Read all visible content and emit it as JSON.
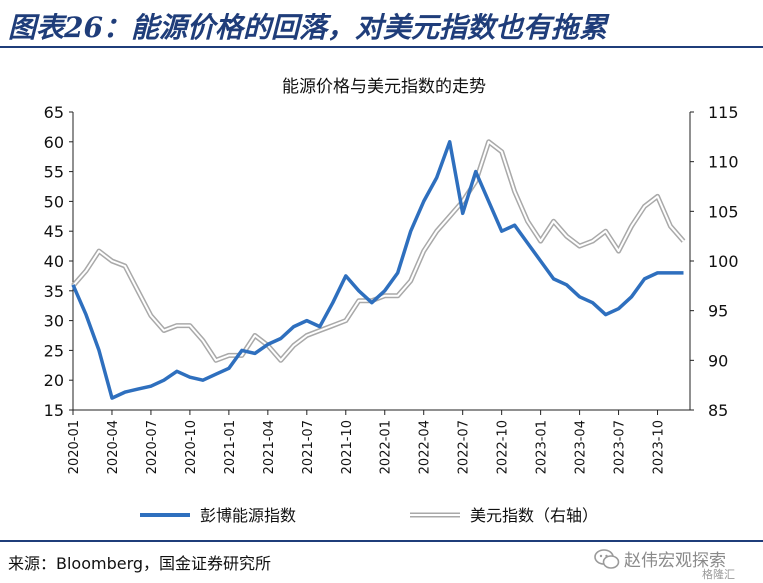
{
  "header": {
    "title": "图表26：能源价格的回落，对美元指数也有拖累"
  },
  "footer": {
    "source": "来源：Bloomberg，国金证券研究所"
  },
  "watermark": {
    "text": "赵伟宏观探索",
    "sub": "格隆汇"
  },
  "colors": {
    "series_energy": "#2e6fbe",
    "series_dxy": "#a9a9a9",
    "header": "#1f3d7a"
  },
  "chart_data": {
    "type": "line",
    "title": "能源价格与美元指数的走势",
    "ylim_left": [
      15,
      65
    ],
    "yticks_left": [
      15,
      20,
      25,
      30,
      35,
      40,
      45,
      50,
      55,
      60,
      65
    ],
    "ylim_right": [
      85,
      115
    ],
    "yticks_right": [
      85,
      90,
      95,
      100,
      105,
      110,
      115
    ],
    "xlim": [
      "2020-01",
      "2023-12"
    ],
    "x_ticks": [
      "2020-01",
      "2020-04",
      "2020-07",
      "2020-10",
      "2021-01",
      "2021-04",
      "2021-07",
      "2021-10",
      "2022-01",
      "2022-04",
      "2022-07",
      "2022-10",
      "2023-01",
      "2023-04",
      "2023-07",
      "2023-10"
    ],
    "legend_position": "bottom",
    "grid": false,
    "series": [
      {
        "name": "彭博能源指数",
        "axis": "left",
        "x": [
          "2020-01",
          "2020-02",
          "2020-03",
          "2020-04",
          "2020-05",
          "2020-06",
          "2020-07",
          "2020-08",
          "2020-09",
          "2020-10",
          "2020-11",
          "2020-12",
          "2021-01",
          "2021-02",
          "2021-03",
          "2021-04",
          "2021-05",
          "2021-06",
          "2021-07",
          "2021-08",
          "2021-09",
          "2021-10",
          "2021-11",
          "2021-12",
          "2022-01",
          "2022-02",
          "2022-03",
          "2022-04",
          "2022-05",
          "2022-06",
          "2022-07",
          "2022-08",
          "2022-09",
          "2022-10",
          "2022-11",
          "2022-12",
          "2023-01",
          "2023-02",
          "2023-03",
          "2023-04",
          "2023-05",
          "2023-06",
          "2023-07",
          "2023-08",
          "2023-09",
          "2023-10",
          "2023-11",
          "2023-12"
        ],
        "values": [
          36,
          31,
          25,
          17,
          18,
          18.5,
          19,
          20,
          21.5,
          20.5,
          20,
          21,
          22,
          25,
          24.5,
          26,
          27,
          29,
          30,
          29,
          33,
          37.5,
          35,
          33,
          35,
          38,
          45,
          50,
          54,
          60,
          48,
          55,
          50,
          45,
          46,
          43,
          40,
          37,
          36,
          34,
          33,
          31,
          32,
          34,
          37,
          38,
          38,
          38
        ]
      },
      {
        "name": "美元指数（右轴）",
        "axis": "right",
        "x": [
          "2020-01",
          "2020-02",
          "2020-03",
          "2020-04",
          "2020-05",
          "2020-06",
          "2020-07",
          "2020-08",
          "2020-09",
          "2020-10",
          "2020-11",
          "2020-12",
          "2021-01",
          "2021-02",
          "2021-03",
          "2021-04",
          "2021-05",
          "2021-06",
          "2021-07",
          "2021-08",
          "2021-09",
          "2021-10",
          "2021-11",
          "2021-12",
          "2022-01",
          "2022-02",
          "2022-03",
          "2022-04",
          "2022-05",
          "2022-06",
          "2022-07",
          "2022-08",
          "2022-09",
          "2022-10",
          "2022-11",
          "2022-12",
          "2023-01",
          "2023-02",
          "2023-03",
          "2023-04",
          "2023-05",
          "2023-06",
          "2023-07",
          "2023-08",
          "2023-09",
          "2023-10",
          "2023-11",
          "2023-12"
        ],
        "values": [
          97.5,
          99,
          101,
          100,
          99.5,
          97,
          94.5,
          93,
          93.5,
          93.5,
          92,
          90,
          90.5,
          90.5,
          92.5,
          91.5,
          90,
          91.5,
          92.5,
          93,
          93.5,
          94,
          96,
          96,
          96.5,
          96.5,
          98,
          101,
          103,
          104.5,
          106,
          108,
          112,
          111,
          107,
          104,
          102,
          104,
          102.5,
          101.5,
          102,
          103,
          101,
          103.5,
          105.5,
          106.5,
          103.5,
          102
        ]
      }
    ]
  }
}
